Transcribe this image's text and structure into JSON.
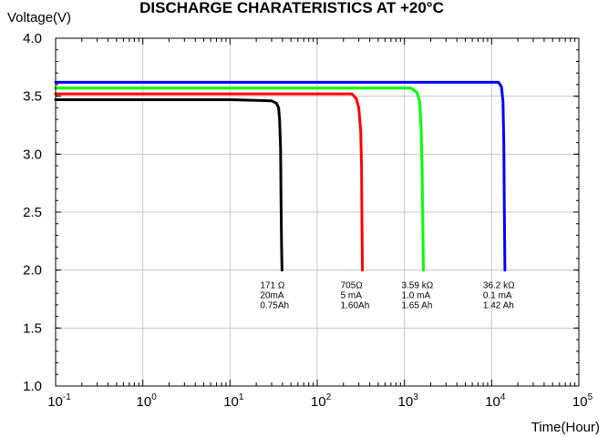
{
  "chart_data": {
    "type": "line",
    "title": "DISCHARGE CHARATERISTICS AT +20°C",
    "ylabel": "Voltage(V)",
    "xlabel": "Time(Hour)",
    "x_scale": "log",
    "xlim": [
      0.1,
      100000
    ],
    "ylim": [
      1.0,
      4.0
    ],
    "y_ticks": [
      1.0,
      1.5,
      2.0,
      2.5,
      3.0,
      3.5,
      4.0
    ],
    "y_tick_labels": [
      "1.0",
      "1.5",
      "2.0",
      "2.5",
      "3.0",
      "3.5",
      "4.0"
    ],
    "x_ticks": [
      {
        "value": 0.1,
        "base": "10",
        "exp": "-1"
      },
      {
        "value": 1,
        "base": "10",
        "exp": "0"
      },
      {
        "value": 10,
        "base": "10",
        "exp": "1"
      },
      {
        "value": 100,
        "base": "10",
        "exp": "2"
      },
      {
        "value": 1000,
        "base": "10",
        "exp": "3"
      },
      {
        "value": 10000,
        "base": "10",
        "exp": "4"
      },
      {
        "value": 100000,
        "base": "10",
        "exp": "5"
      }
    ],
    "grid": true,
    "series": [
      {
        "color": "#000000",
        "x": [
          0.1,
          10,
          30,
          34,
          36,
          37,
          38,
          38.5,
          39,
          39.5
        ],
        "y": [
          3.47,
          3.47,
          3.46,
          3.44,
          3.4,
          3.3,
          3.05,
          2.6,
          2.2,
          2.0
        ],
        "annotation": [
          "171 Ω",
          "20mA",
          "0.75Ah"
        ]
      },
      {
        "color": "#ff0000",
        "x": [
          0.1,
          50,
          250,
          280,
          300,
          315,
          322,
          326,
          330
        ],
        "y": [
          3.52,
          3.52,
          3.52,
          3.48,
          3.4,
          3.2,
          2.9,
          2.4,
          2.0
        ],
        "annotation": [
          "705Ω",
          "5 mA",
          "1.60Ah"
        ]
      },
      {
        "color": "#00ff00",
        "x": [
          0.1,
          500,
          1200,
          1400,
          1500,
          1560,
          1600,
          1630,
          1650
        ],
        "y": [
          3.57,
          3.57,
          3.57,
          3.53,
          3.45,
          3.2,
          2.8,
          2.3,
          2.0
        ],
        "annotation": [
          "3.59 kΩ",
          "1.0 mA",
          "1.65 Ah"
        ]
      },
      {
        "color": "#0000ff",
        "x": [
          0.1,
          5000,
          12000,
          13000,
          13500,
          13800,
          14000,
          14200
        ],
        "y": [
          3.62,
          3.62,
          3.62,
          3.58,
          3.45,
          3.1,
          2.5,
          2.0
        ],
        "annotation": [
          "36.2 kΩ",
          "0.1 mA",
          "1.42 Ah"
        ]
      }
    ]
  }
}
